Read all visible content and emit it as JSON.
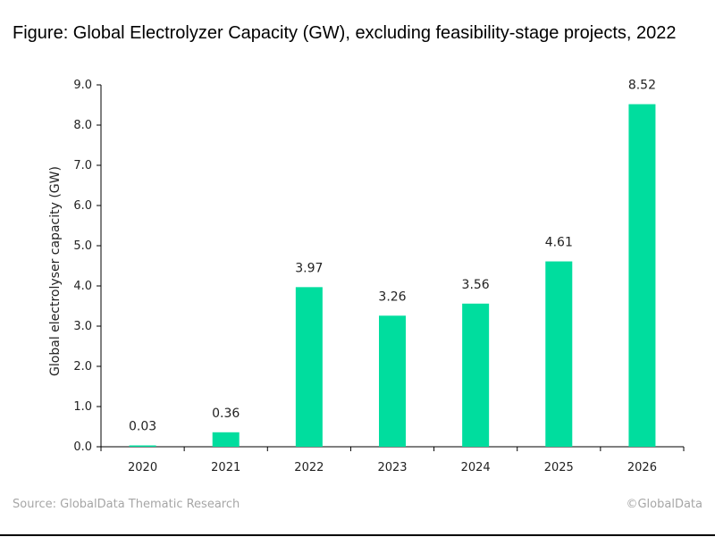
{
  "title": "Figure: Global Electrolyzer Capacity (GW), excluding feasibility-stage projects, 2022",
  "footer": {
    "source": "Source: GlobalData Thematic Research",
    "copyright": "©GlobalData"
  },
  "colors": {
    "bar": "#00dd9e",
    "axis": "#000000",
    "footer_text": "#a6a6a6"
  },
  "chart_data": {
    "type": "bar",
    "categories": [
      "2020",
      "2021",
      "2022",
      "2023",
      "2024",
      "2025",
      "2026"
    ],
    "values": [
      0.03,
      0.36,
      3.97,
      3.26,
      3.56,
      4.61,
      8.52
    ],
    "data_labels": [
      "0.03",
      "0.36",
      "3.97",
      "3.26",
      "3.56",
      "4.61",
      "8.52"
    ],
    "ylabel": "Global electrolyser capacity (GW)",
    "xlabel": "",
    "ylim": [
      0,
      9
    ],
    "yticks": [
      "0.0",
      "1.0",
      "2.0",
      "3.0",
      "4.0",
      "5.0",
      "6.0",
      "7.0",
      "8.0",
      "9.0"
    ],
    "grid": false,
    "legend": "none"
  }
}
